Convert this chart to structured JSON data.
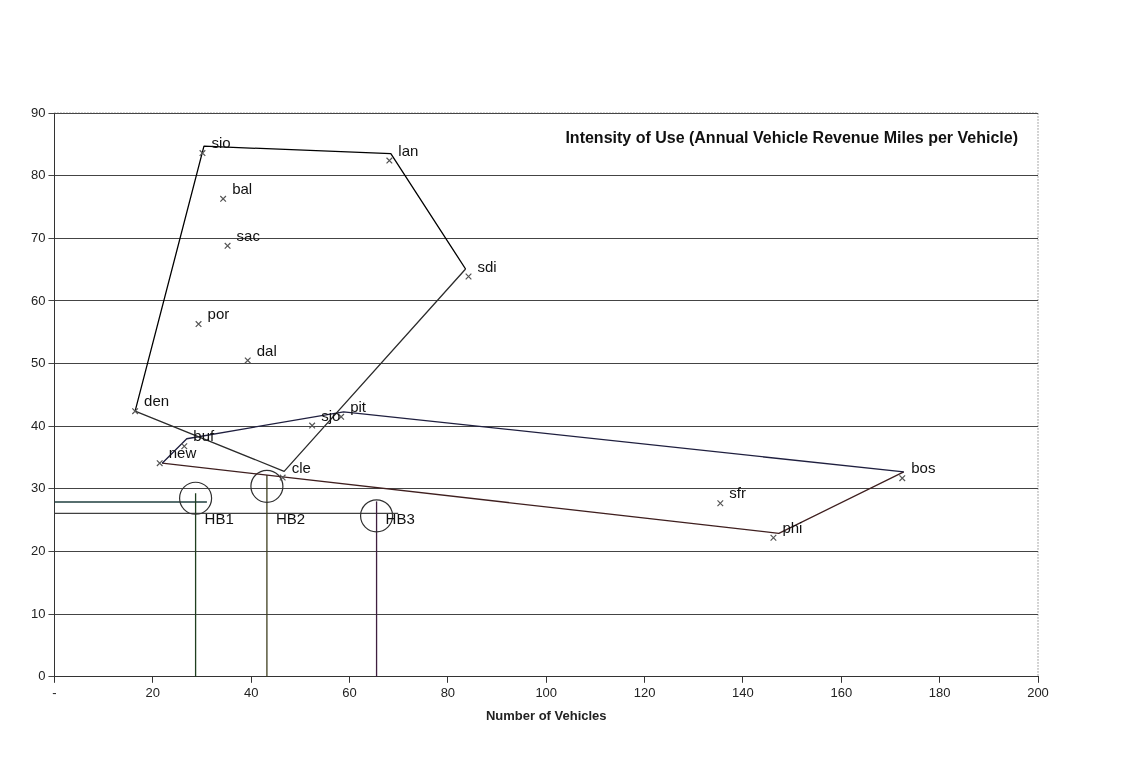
{
  "chart_data": {
    "type": "scatter",
    "title": "Intensity of Use (Annual Vehicle Revenue Miles per Vehicle)",
    "xlabel": "Number of Vehicles",
    "xlim": [
      0,
      200
    ],
    "xticks": [
      {
        "value": 0,
        "label": "-"
      },
      20,
      40,
      60,
      80,
      100,
      120,
      140,
      160,
      180,
      200
    ],
    "ylim": [
      0,
      90
    ],
    "yticks": [
      0,
      10,
      20,
      30,
      40,
      50,
      60,
      70,
      80,
      90
    ],
    "grid": "y",
    "legend": false,
    "series": [
      {
        "marker": "cross",
        "color": "#555555",
        "x": [
          30.1,
          34.3,
          35.2,
          29.3,
          39.3,
          68.1,
          84.2,
          16.4,
          26.4,
          21.4,
          52.4,
          58.3,
          46.4,
          135.4,
          146.2,
          172.4
        ],
        "values": [
          83.6,
          76.3,
          68.8,
          56.3,
          50.5,
          82.4,
          63.9,
          42.4,
          36.8,
          34.1,
          40.1,
          41.5,
          31.8,
          27.7,
          22.2,
          31.7
        ]
      },
      {
        "type": "line",
        "marker": "none",
        "color": "#000000",
        "x": [
          16.4,
          30.4,
          68.4,
          83.6
        ],
        "values": [
          42.4,
          84.7,
          83.5,
          65.1
        ]
      },
      {
        "type": "line",
        "marker": "none",
        "color": "#2b2b2b",
        "x": [
          16.4,
          46.7,
          83.6
        ],
        "values": [
          42.4,
          32.8,
          65.1
        ]
      },
      {
        "type": "line",
        "marker": "none",
        "color": "#1f1f3f",
        "x": [
          21.9,
          26.9,
          58.8,
          172.7
        ],
        "values": [
          34.1,
          38.0,
          42.3,
          32.7
        ]
      },
      {
        "type": "line",
        "marker": "none",
        "color": "#3f1f1f",
        "x": [
          21.9,
          147.3,
          172.7
        ],
        "values": [
          34.1,
          22.9,
          32.7
        ]
      },
      {
        "marker": "circle",
        "color": "#303030",
        "x": [
          28.7,
          43.2,
          65.5
        ],
        "values": [
          28.5,
          30.4,
          25.7
        ]
      },
      {
        "type": "line",
        "marker": "none",
        "color": "#1f3f1f",
        "x": [
          28.7,
          28.7
        ],
        "values": [
          0,
          29.3
        ]
      },
      {
        "type": "line",
        "marker": "none",
        "color": "#3f3f1f",
        "x": [
          43.2,
          43.2
        ],
        "values": [
          0,
          32.2
        ]
      },
      {
        "type": "line",
        "marker": "none",
        "color": "#3f1f3f",
        "x": [
          65.5,
          65.5
        ],
        "values": [
          0,
          28
        ]
      },
      {
        "type": "line",
        "marker": "none",
        "color": "#1f3f3f",
        "x": [
          0,
          31
        ],
        "values": [
          27.9,
          27.9
        ]
      },
      {
        "type": "line",
        "marker": "none",
        "color": "#404040",
        "x": [
          0,
          69.9
        ],
        "values": [
          26.1,
          26.1
        ]
      }
    ],
    "annotations": [
      {
        "text": "sio",
        "x": 30.1,
        "y": 83.6
      },
      {
        "text": "bal",
        "x": 34.3,
        "y": 76.3
      },
      {
        "text": "sac",
        "x": 35.2,
        "y": 68.8
      },
      {
        "text": "por",
        "x": 29.3,
        "y": 56.3
      },
      {
        "text": "dal",
        "x": 39.3,
        "y": 50.5
      },
      {
        "text": "lan",
        "x": 68.1,
        "y": 82.4
      },
      {
        "text": "sdi",
        "x": 84.2,
        "y": 63.9
      },
      {
        "text": "den",
        "x": 16.4,
        "y": 42.4
      },
      {
        "text": "buf",
        "x": 26.4,
        "y": 36.8
      },
      {
        "text": "new",
        "x": 21.4,
        "y": 34.1
      },
      {
        "text": "sjo",
        "x": 52.4,
        "y": 40.1
      },
      {
        "text": "pit",
        "x": 58.3,
        "y": 41.5
      },
      {
        "text": "cle",
        "x": 46.4,
        "y": 31.8
      },
      {
        "text": "sfr",
        "x": 135.4,
        "y": 27.7
      },
      {
        "text": "phi",
        "x": 146.2,
        "y": 22.2
      },
      {
        "text": "bos",
        "x": 172.4,
        "y": 31.7
      },
      {
        "text": "HB1",
        "x": 28.7,
        "y": 23.6
      },
      {
        "text": "HB2",
        "x": 43.2,
        "y": 23.6
      },
      {
        "text": "HB3",
        "x": 65.5,
        "y": 23.6
      }
    ]
  }
}
